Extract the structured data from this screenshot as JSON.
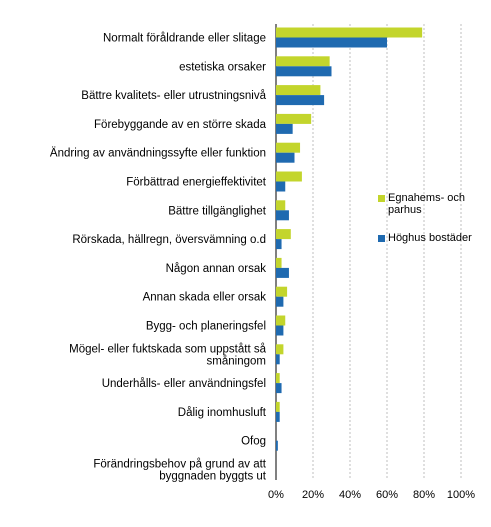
{
  "chart_data": {
    "type": "bar",
    "orientation": "horizontal",
    "title": "",
    "xlabel": "",
    "ylabel": "",
    "xlim": [
      0,
      100
    ],
    "x_ticks": [
      "0%",
      "20%",
      "40%",
      "60%",
      "80%",
      "100%"
    ],
    "grid": "vertical dashed",
    "legend_position": "right",
    "categories": [
      [
        "Normalt föråldrande eller slitage"
      ],
      [
        "estetiska orsaker"
      ],
      [
        "Bättre kvalitets- eller utrustningsnivå"
      ],
      [
        "Förebyggande av en större skada"
      ],
      [
        "Ändring av användningssyfte eller funktion"
      ],
      [
        "Förbättrad energieffektivitet"
      ],
      [
        "Bättre tillgänglighet"
      ],
      [
        "Rörskada, hällregn, översvämning o.d"
      ],
      [
        "Någon annan orsak"
      ],
      [
        "Annan skada eller orsak"
      ],
      [
        "Bygg- och planeringsfel"
      ],
      [
        "Mögel- eller fuktskada som uppstått så",
        "småningom"
      ],
      [
        "Underhålls- eller användningsfel"
      ],
      [
        "Dålig inomhusluft"
      ],
      [
        "Ofog"
      ],
      [
        "Förändringsbehov på grund av att",
        "byggnaden byggts ut"
      ]
    ],
    "series": [
      {
        "name": "Egnahems- och parhus",
        "legend_lines": [
          "Egnahems- och",
          "parhus"
        ],
        "color": "#c3d52c",
        "values": [
          79,
          29,
          24,
          19,
          13,
          14,
          5,
          8,
          3,
          6,
          5,
          4,
          2,
          2,
          0,
          0
        ]
      },
      {
        "name": "Höghus bostäder",
        "legend_lines": [
          "Höghus bostäder"
        ],
        "color": "#1f6ab0",
        "values": [
          60,
          30,
          26,
          9,
          10,
          5,
          7,
          3,
          7,
          4,
          4,
          2,
          3,
          2,
          1,
          0
        ]
      }
    ]
  }
}
